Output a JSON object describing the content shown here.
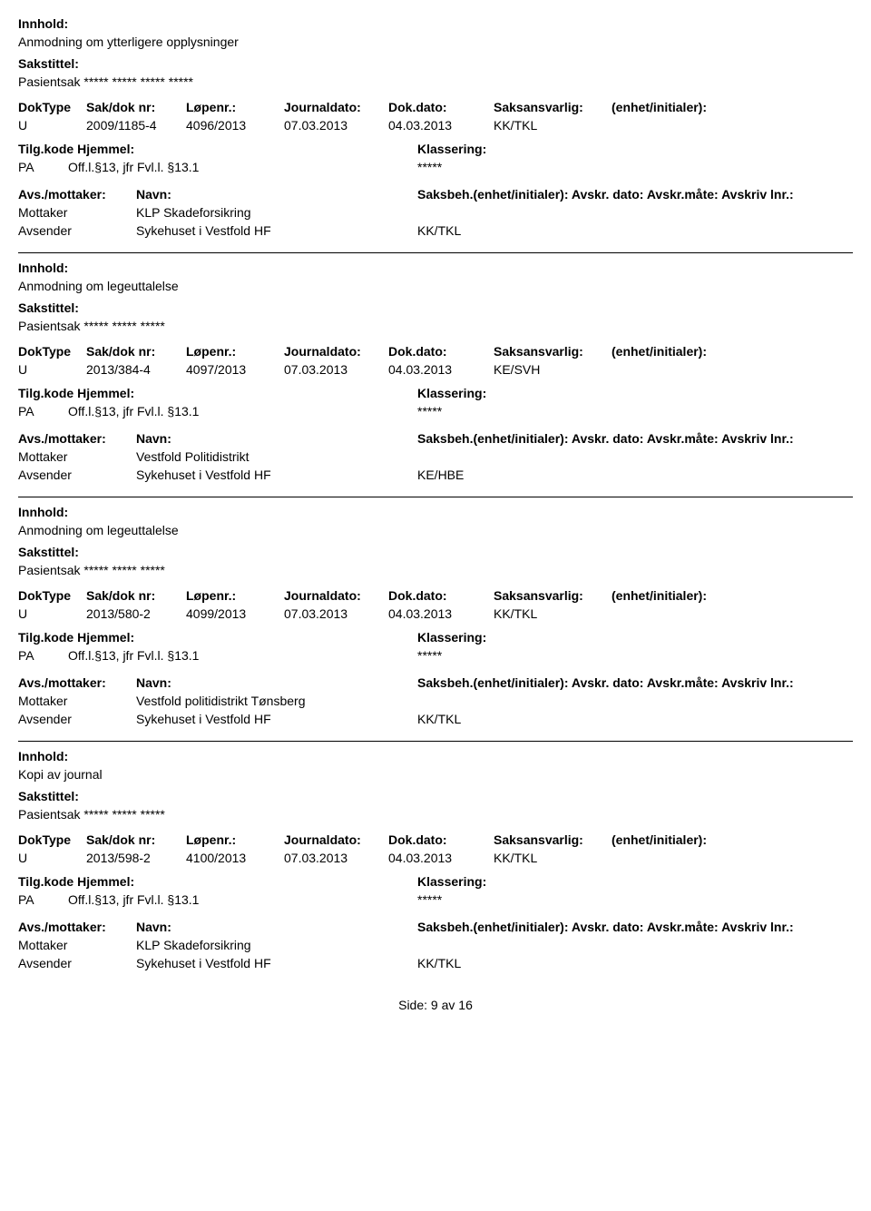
{
  "labels": {
    "innhold": "Innhold:",
    "sakstittel": "Sakstittel:",
    "doktype": "DokType",
    "sakdoknr": "Sak/dok nr:",
    "lopenr": "Løpenr.:",
    "journaldato": "Journaldato:",
    "dokdato": "Dok.dato:",
    "saksansvarlig": "Saksansvarlig:",
    "enhet": "(enhet/initialer):",
    "tilgkode": "Tilg.kode",
    "hjemmel": "Hjemmel:",
    "klassering": "Klassering:",
    "avsmottaker": "Avs./mottaker:",
    "navn": "Navn:",
    "saksbeh_full": "Saksbeh.(enhet/initialer): Avskr. dato:  Avskr.måte: Avskriv lnr.:",
    "side": "Side:",
    "av": "av"
  },
  "entries": [
    {
      "innhold": "Anmodning om ytterligere opplysninger",
      "sakstittel": "Pasientsak ***** ***** ***** *****",
      "doktype": "U",
      "sakdoknr": "2009/1185-4",
      "lopenr": "4096/2013",
      "journaldato": "07.03.2013",
      "dokdato": "04.03.2013",
      "saksansvarlig": "KK/TKL",
      "tilgkode": "PA",
      "hjemmel": "Off.l.§13, jfr Fvl.l. §13.1",
      "klassering": "*****",
      "parties": [
        {
          "role": "Mottaker",
          "navn": "KLP Skadeforsikring",
          "saksbeh": ""
        },
        {
          "role": "Avsender",
          "navn": "Sykehuset i Vestfold HF",
          "saksbeh": "KK/TKL"
        }
      ]
    },
    {
      "innhold": "Anmodning om legeuttalelse",
      "sakstittel": "Pasientsak ***** ***** *****",
      "doktype": "U",
      "sakdoknr": "2013/384-4",
      "lopenr": "4097/2013",
      "journaldato": "07.03.2013",
      "dokdato": "04.03.2013",
      "saksansvarlig": "KE/SVH",
      "tilgkode": "PA",
      "hjemmel": "Off.l.§13, jfr Fvl.l. §13.1",
      "klassering": "*****",
      "parties": [
        {
          "role": "Mottaker",
          "navn": "Vestfold Politidistrikt",
          "saksbeh": ""
        },
        {
          "role": "Avsender",
          "navn": "Sykehuset i Vestfold HF",
          "saksbeh": "KE/HBE"
        }
      ]
    },
    {
      "innhold": "Anmodning om legeuttalelse",
      "sakstittel": "Pasientsak ***** ***** *****",
      "doktype": "U",
      "sakdoknr": "2013/580-2",
      "lopenr": "4099/2013",
      "journaldato": "07.03.2013",
      "dokdato": "04.03.2013",
      "saksansvarlig": "KK/TKL",
      "tilgkode": "PA",
      "hjemmel": "Off.l.§13, jfr Fvl.l. §13.1",
      "klassering": "*****",
      "parties": [
        {
          "role": "Mottaker",
          "navn": "Vestfold politidistrikt Tønsberg",
          "saksbeh": ""
        },
        {
          "role": "Avsender",
          "navn": "Sykehuset i Vestfold HF",
          "saksbeh": "KK/TKL"
        }
      ]
    },
    {
      "innhold": "Kopi av journal",
      "sakstittel": "Pasientsak ***** ***** *****",
      "doktype": "U",
      "sakdoknr": "2013/598-2",
      "lopenr": "4100/2013",
      "journaldato": "07.03.2013",
      "dokdato": "04.03.2013",
      "saksansvarlig": "KK/TKL",
      "tilgkode": "PA",
      "hjemmel": "Off.l.§13, jfr Fvl.l. §13.1",
      "klassering": "*****",
      "parties": [
        {
          "role": "Mottaker",
          "navn": "KLP Skadeforsikring",
          "saksbeh": ""
        },
        {
          "role": "Avsender",
          "navn": "Sykehuset i Vestfold HF",
          "saksbeh": "KK/TKL"
        }
      ]
    }
  ],
  "page": {
    "current": "9",
    "total": "16"
  }
}
